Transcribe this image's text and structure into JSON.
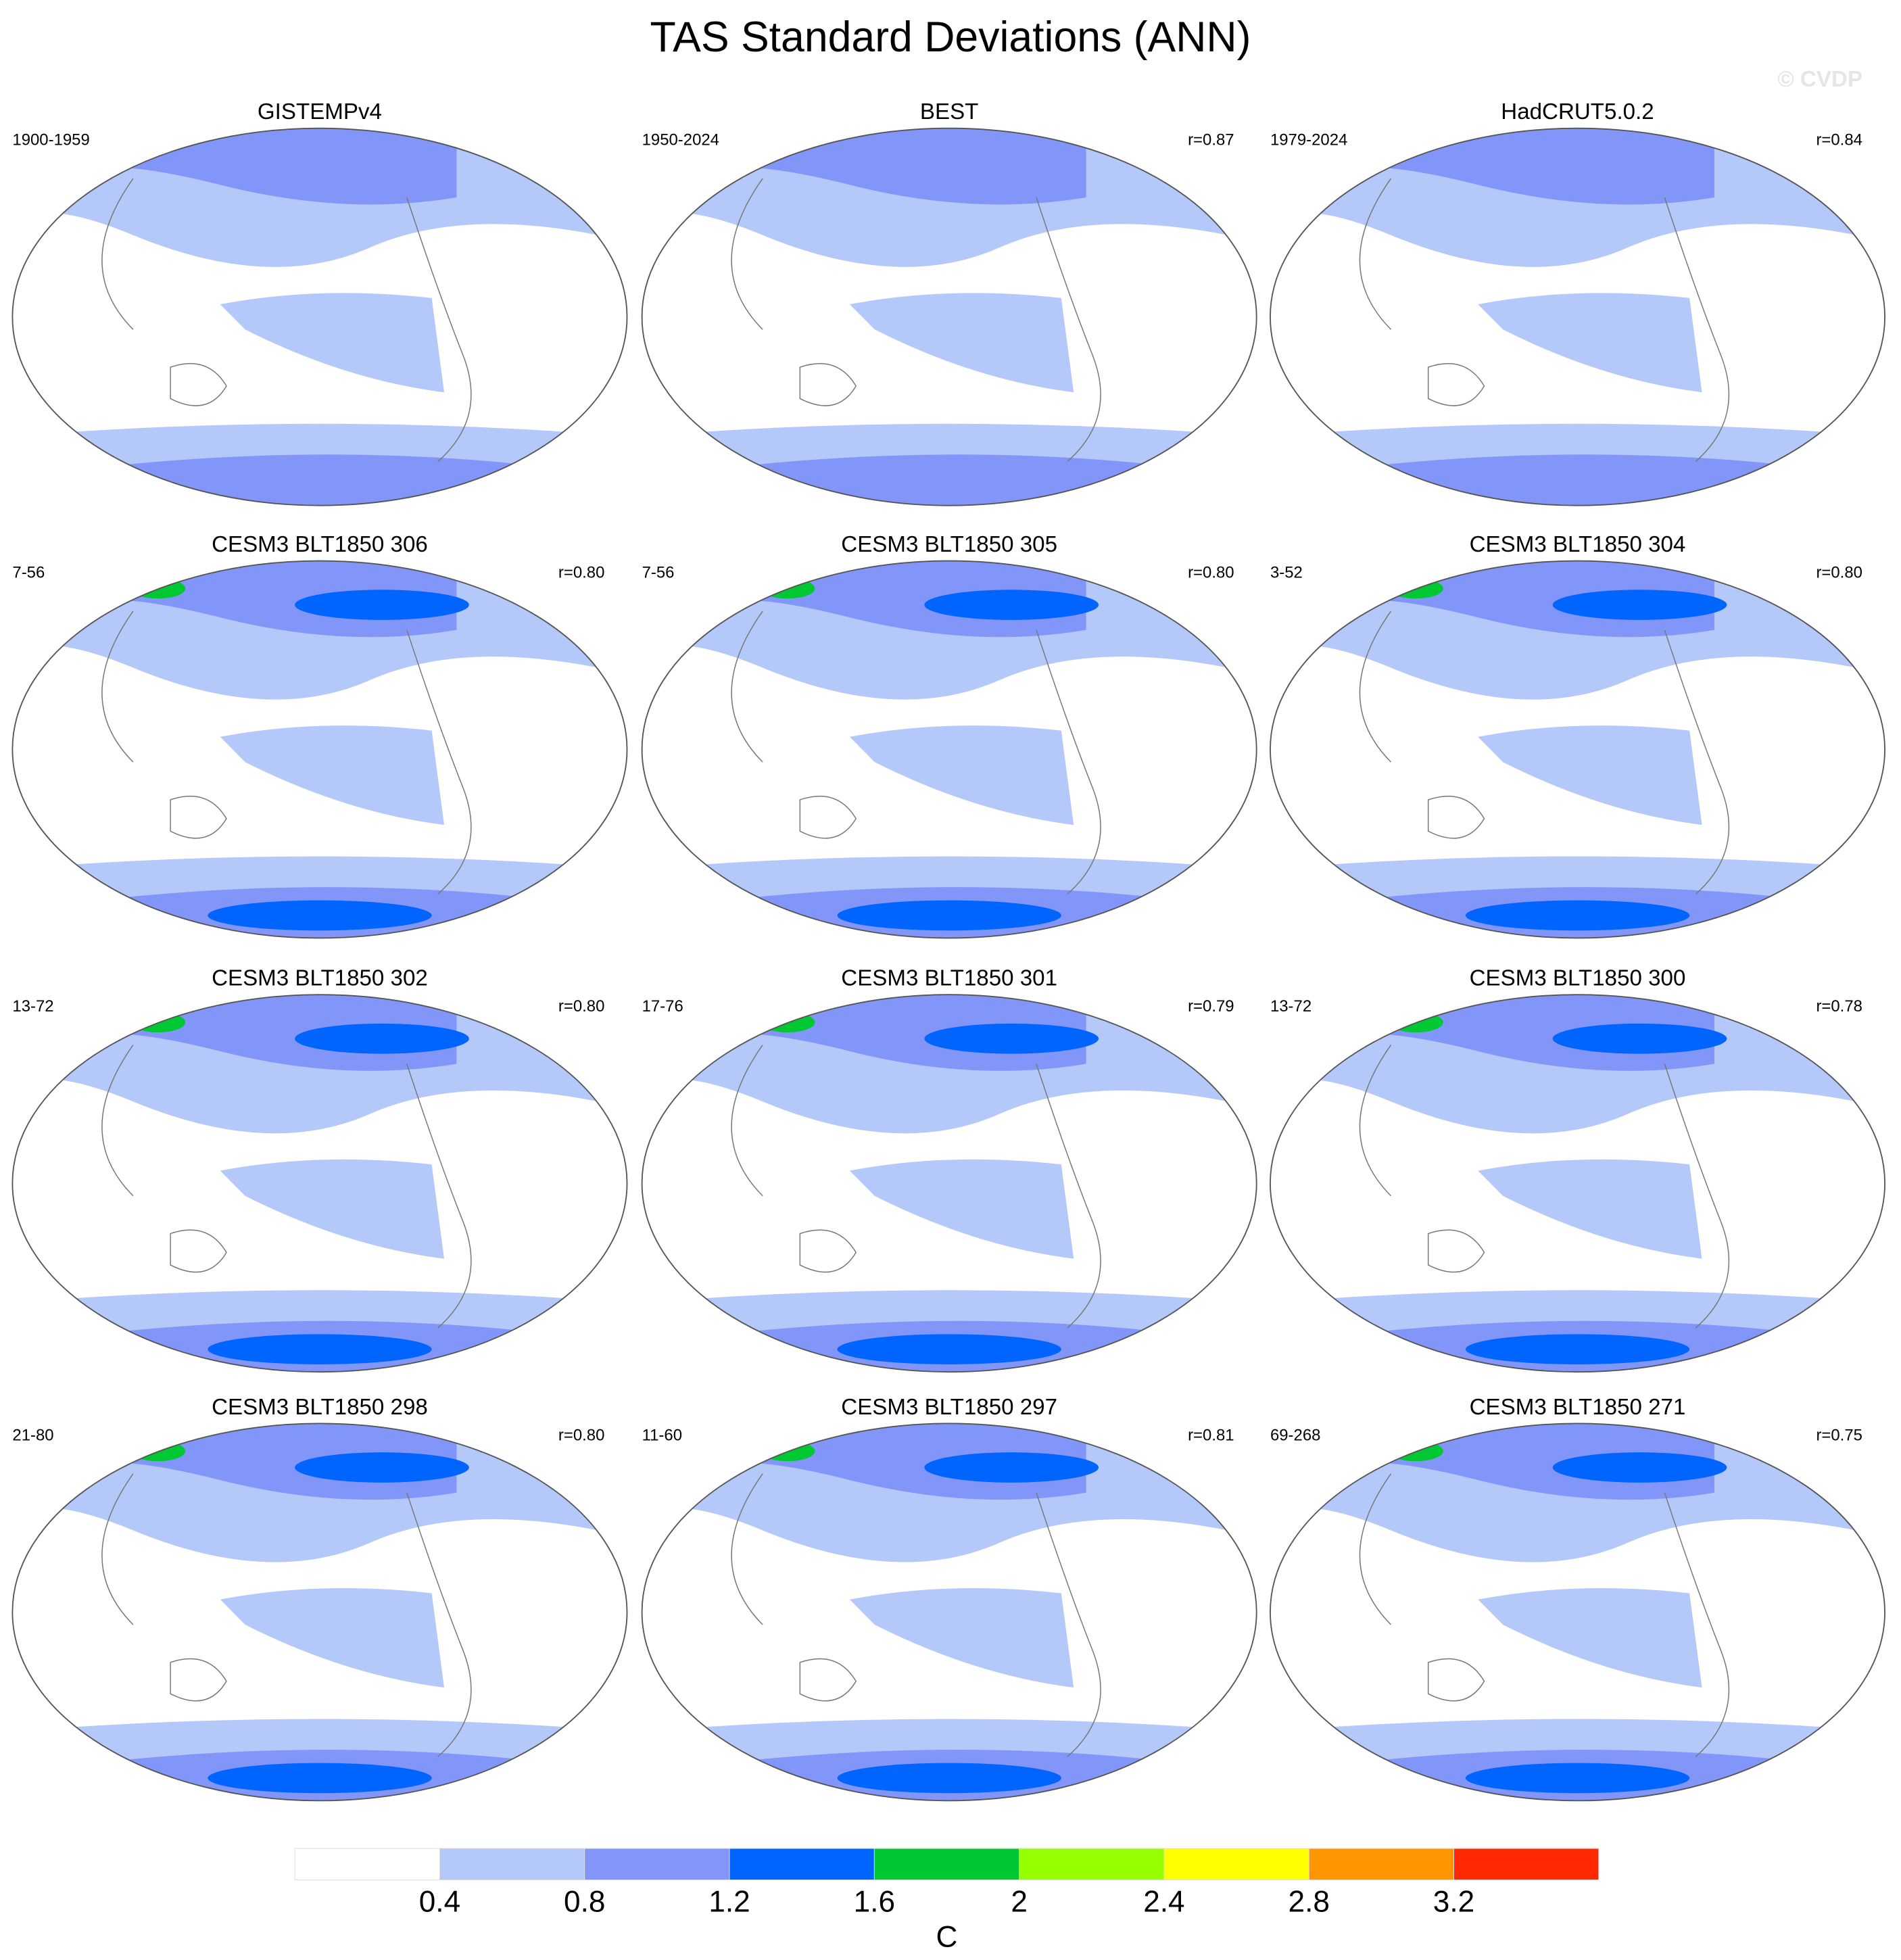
{
  "title": "TAS Standard Deviations (ANN)",
  "watermark": "© CVDP",
  "panels": [
    {
      "title": "GISTEMPv4",
      "period": "1900-1959"
    },
    {
      "title": "BEST",
      "period": "1950-2024",
      "r": "r=0.87"
    },
    {
      "title": "HadCRUT5.0.2",
      "period": "1979-2024",
      "r": "r=0.84"
    },
    {
      "title": "CESM3 BLT1850 306",
      "period": "7-56",
      "r": "r=0.80"
    },
    {
      "title": "CESM3 BLT1850 305",
      "period": "7-56",
      "r": "r=0.80"
    },
    {
      "title": "CESM3 BLT1850 304",
      "period": "3-52",
      "r": "r=0.80"
    },
    {
      "title": "CESM3 BLT1850 302",
      "period": "13-72",
      "r": "r=0.80"
    },
    {
      "title": "CESM3 BLT1850 301",
      "period": "17-76",
      "r": "r=0.79"
    },
    {
      "title": "CESM3 BLT1850 300",
      "period": "13-72",
      "r": "r=0.78"
    },
    {
      "title": "CESM3 BLT1850 298",
      "period": "21-80",
      "r": "r=0.80"
    },
    {
      "title": "CESM3 BLT1850 297",
      "period": "11-60",
      "r": "r=0.81"
    },
    {
      "title": "CESM3 BLT1850 271",
      "period": "69-268",
      "r": "r=0.75"
    }
  ],
  "colorbar": {
    "levels": [
      0.4,
      0.8,
      1.2,
      1.6,
      2,
      2.4,
      2.8,
      3.2
    ],
    "colors": [
      "#ffffff",
      "#b4c8fa",
      "#8296fa",
      "#0064ff",
      "#00c832",
      "#96ff00",
      "#ffff00",
      "#ff9600",
      "#ff2800"
    ],
    "label": "C"
  }
}
